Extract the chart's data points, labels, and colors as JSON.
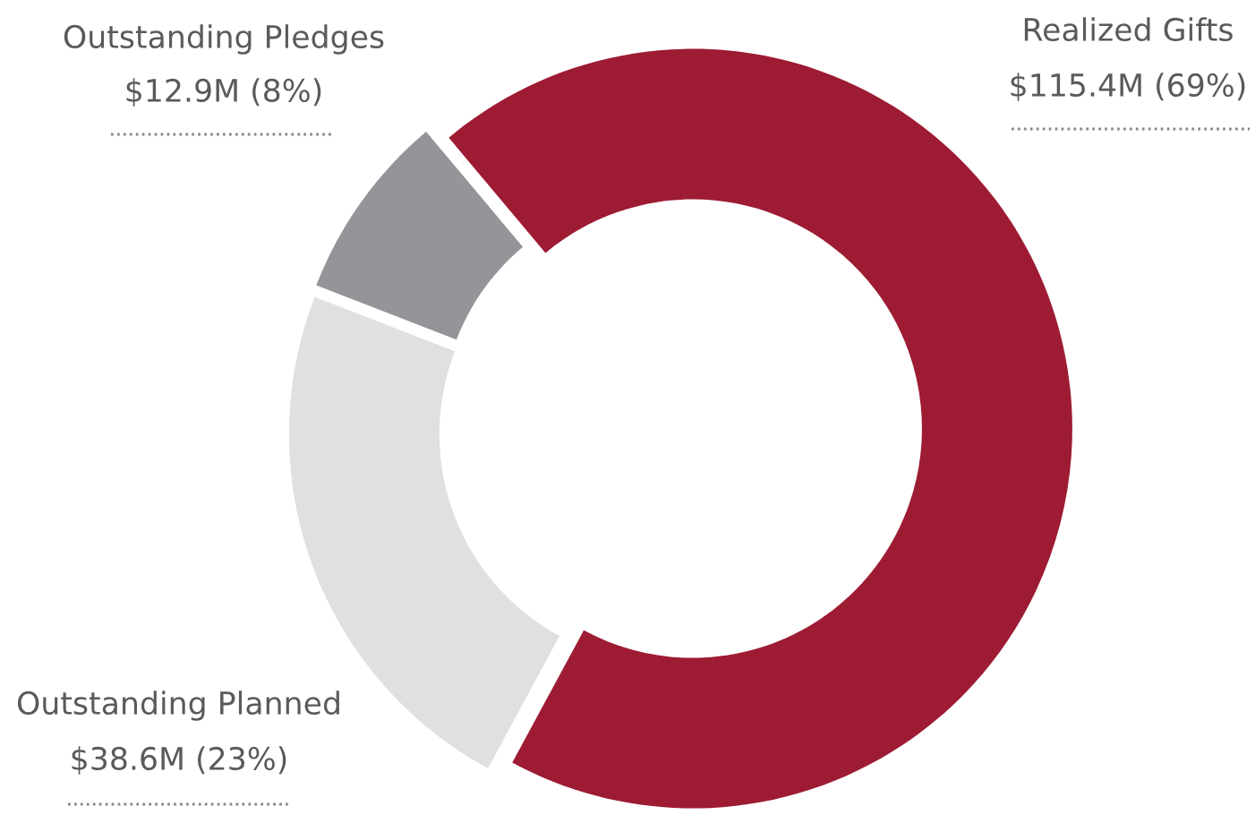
{
  "chart_data": {
    "type": "donut",
    "categories": [
      "Realized Gifts",
      "Outstanding Planned",
      "Outstanding Pledges"
    ],
    "values": [
      69,
      23,
      8
    ],
    "colors": [
      "#9e1b34",
      "#e0e0e2",
      "#939598"
    ],
    "value_labels": [
      "$115.4M (69%)",
      "$38.6M (23%)",
      "$12.9M (8%)"
    ],
    "legend": false
  }
}
